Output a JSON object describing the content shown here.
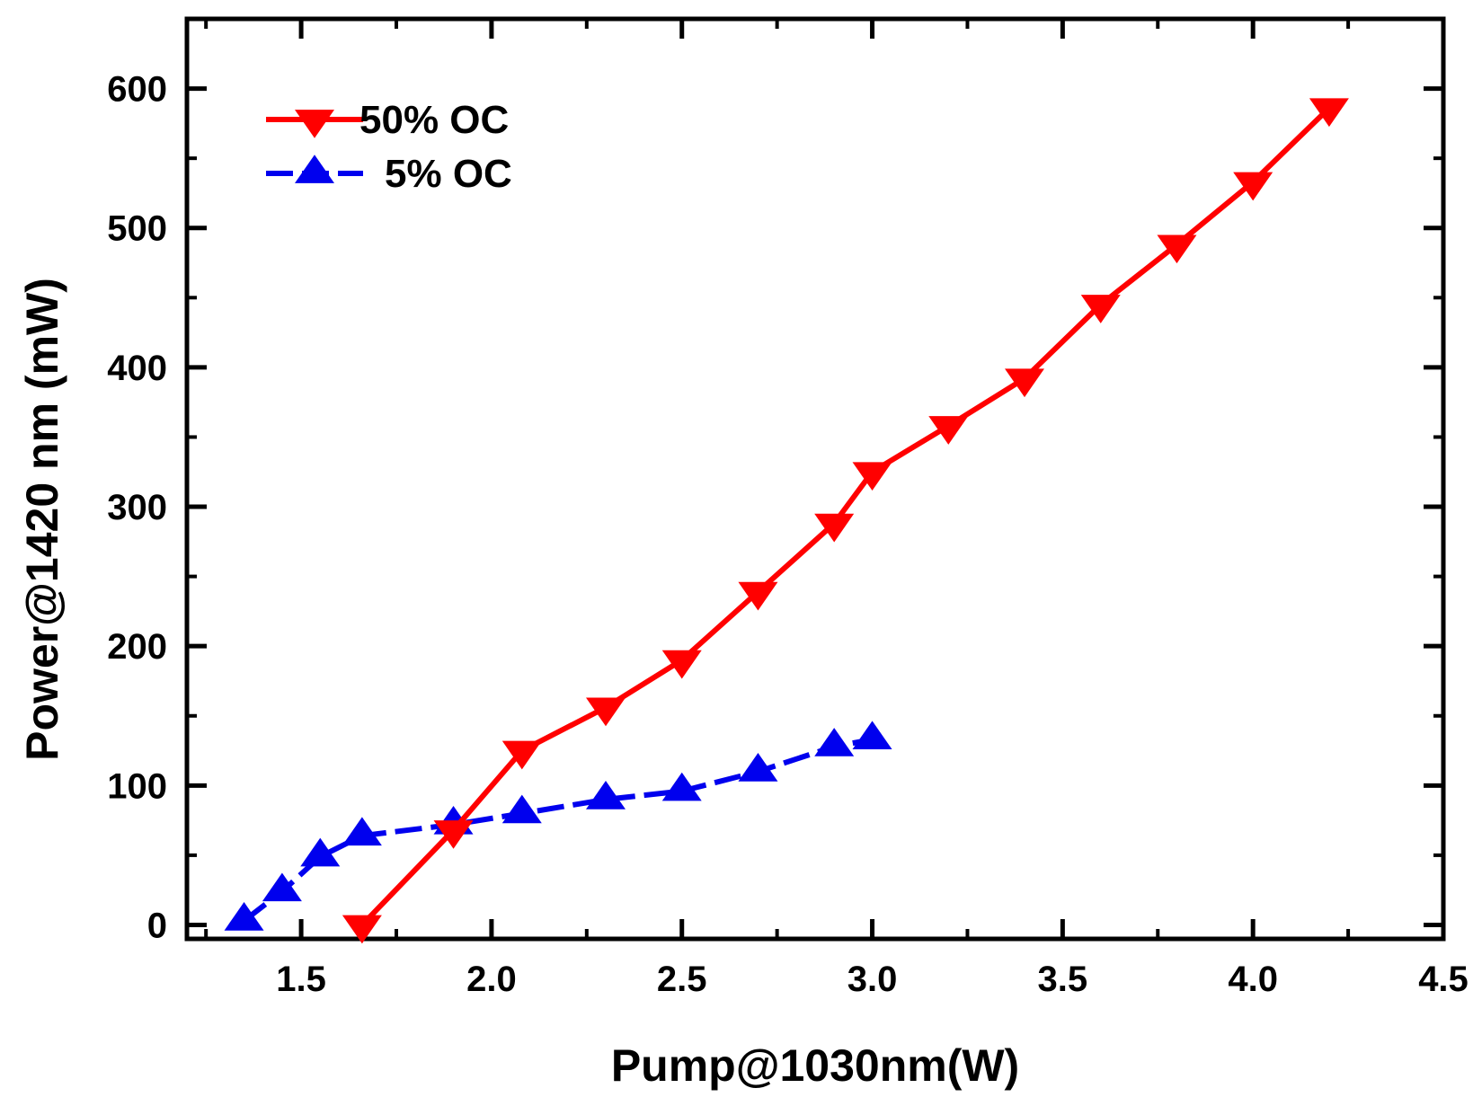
{
  "chart_data": {
    "type": "line",
    "title": "",
    "xlabel": "Pump@1030nm(W)",
    "ylabel": "Power@1420 nm (mW)",
    "xlim": [
      1.2,
      4.5
    ],
    "ylim": [
      -10,
      650
    ],
    "xticks": [
      1.5,
      2.0,
      2.5,
      3.0,
      3.5,
      4.0,
      4.5
    ],
    "xtick_labels": [
      "1.5",
      "2.0",
      "2.5",
      "3.0",
      "3.5",
      "4.0",
      "4.5"
    ],
    "yticks": [
      0,
      100,
      200,
      300,
      400,
      500,
      600
    ],
    "ytick_labels": [
      "0",
      "100",
      "200",
      "300",
      "400",
      "500",
      "600"
    ],
    "grid": false,
    "legend_position": "top-left",
    "series": [
      {
        "name": "50% OC",
        "color": "#ff0000",
        "marker": "triangle-down",
        "line": "solid",
        "x": [
          1.66,
          1.9,
          2.08,
          2.3,
          2.5,
          2.7,
          2.9,
          3.0,
          3.2,
          3.4,
          3.6,
          3.8,
          4.0,
          4.2
        ],
        "values": [
          0,
          68,
          125,
          156,
          190,
          239,
          288,
          325,
          358,
          392,
          445,
          488,
          533,
          586
        ]
      },
      {
        "name": "5% OC",
        "color": "#0000ee",
        "marker": "triangle-up",
        "line": "dashed",
        "x": [
          1.35,
          1.45,
          1.55,
          1.66,
          1.9,
          2.08,
          2.3,
          2.5,
          2.7,
          2.9,
          3.0
        ],
        "values": [
          3,
          24,
          49,
          64,
          72,
          80,
          90,
          96,
          110,
          128,
          133
        ]
      }
    ]
  }
}
